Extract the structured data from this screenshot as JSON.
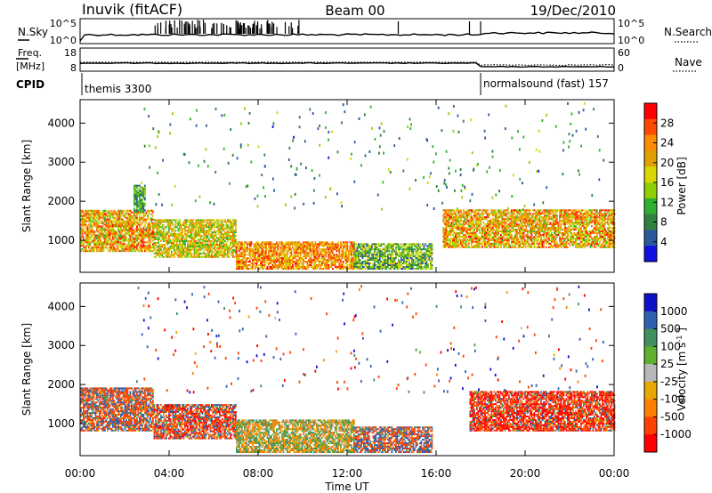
{
  "header": {
    "station": "Inuvik (fitACF)",
    "beam": "Beam 00",
    "date": "19/Dec/2010"
  },
  "panels": {
    "nsky": {
      "left_label": "N.Sky",
      "left_ticks": [
        "10^5",
        "10^0"
      ],
      "right_ticks": [
        "10^5",
        "10^0"
      ],
      "right_label": "N.Search"
    },
    "freq": {
      "left_label_line1": "Freq.",
      "left_label_line2": "[MHz]",
      "left_ticks": [
        "18",
        "8"
      ],
      "right_ticks": [
        "60",
        "0"
      ],
      "right_label": "Nave"
    },
    "cpid": {
      "label": "CPID",
      "segments": [
        {
          "name": "themis",
          "id": "3300"
        },
        {
          "name": "normalsound (fast)",
          "id": "157"
        }
      ]
    }
  },
  "colorbars": {
    "power": {
      "label": "Power [dB]",
      "ticks": [
        "28",
        "24",
        "20",
        "16",
        "12",
        "8",
        "4"
      ],
      "colors": [
        "#ff0000",
        "#ff4a00",
        "#ff8c00",
        "#e0a000",
        "#d8d800",
        "#90d000",
        "#30b030",
        "#308040",
        "#2a5a9a",
        "#1010e0"
      ]
    },
    "velocity": {
      "label": "Velocity [m s-1]",
      "ticks": [
        "1000",
        "500",
        "100",
        "25",
        "-25",
        "-100",
        "-500",
        "-1000"
      ],
      "colors": [
        "#1010c8",
        "#3060b0",
        "#409060",
        "#60b030",
        "#b8b8b8",
        "#e8a800",
        "#ff8000",
        "#ff4000",
        "#ff0000"
      ]
    }
  },
  "axes": {
    "ylabel": "Slant Range [km]",
    "xlabel": "Time UT",
    "y_ticks": [
      "4000",
      "3000",
      "2000",
      "1000"
    ],
    "x_ticks": [
      "00:00",
      "04:00",
      "08:00",
      "12:00",
      "16:00",
      "20:00",
      "00:00"
    ]
  },
  "chart_data": [
    {
      "type": "heatmap",
      "quantity": "Power",
      "x_units": "hours UT",
      "xlim": [
        0,
        24
      ],
      "ylim": [
        180,
        4600
      ],
      "cpid_change_hour": 18.0,
      "bands": [
        {
          "t0": 0.0,
          "t1": 3.3,
          "r0": 700,
          "r1": 1750,
          "lo": 12,
          "hi": 30
        },
        {
          "t0": 2.4,
          "t1": 2.9,
          "r0": 1700,
          "r1": 2400,
          "lo": 4,
          "hi": 16
        },
        {
          "t0": 3.3,
          "t1": 7.0,
          "r0": 550,
          "r1": 1500,
          "lo": 10,
          "hi": 26
        },
        {
          "t0": 7.0,
          "t1": 12.3,
          "r0": 250,
          "r1": 950,
          "lo": 16,
          "hi": 30
        },
        {
          "t0": 12.3,
          "t1": 15.8,
          "r0": 250,
          "r1": 900,
          "lo": 4,
          "hi": 20
        },
        {
          "t0": 16.3,
          "t1": 24.0,
          "r0": 800,
          "r1": 1750,
          "lo": 12,
          "hi": 30
        }
      ]
    },
    {
      "type": "heatmap",
      "quantity": "Velocity",
      "x_units": "hours UT",
      "xlim": [
        0,
        24
      ],
      "ylim": [
        180,
        4600
      ],
      "bands": [
        {
          "t0": 0.0,
          "t1": 3.3,
          "r0": 800,
          "r1": 1900,
          "lo": -200,
          "hi": 150
        },
        {
          "t0": 3.3,
          "t1": 7.0,
          "r0": 600,
          "r1": 1500,
          "lo": -300,
          "hi": 120
        },
        {
          "t0": 7.0,
          "t1": 12.3,
          "r0": 250,
          "r1": 1100,
          "lo": -30,
          "hi": 30
        },
        {
          "t0": 12.3,
          "t1": 15.8,
          "r0": 250,
          "r1": 900,
          "lo": -200,
          "hi": 200
        },
        {
          "t0": 17.5,
          "t1": 24.0,
          "r0": 800,
          "r1": 1800,
          "lo": -400,
          "hi": 80
        }
      ]
    }
  ]
}
